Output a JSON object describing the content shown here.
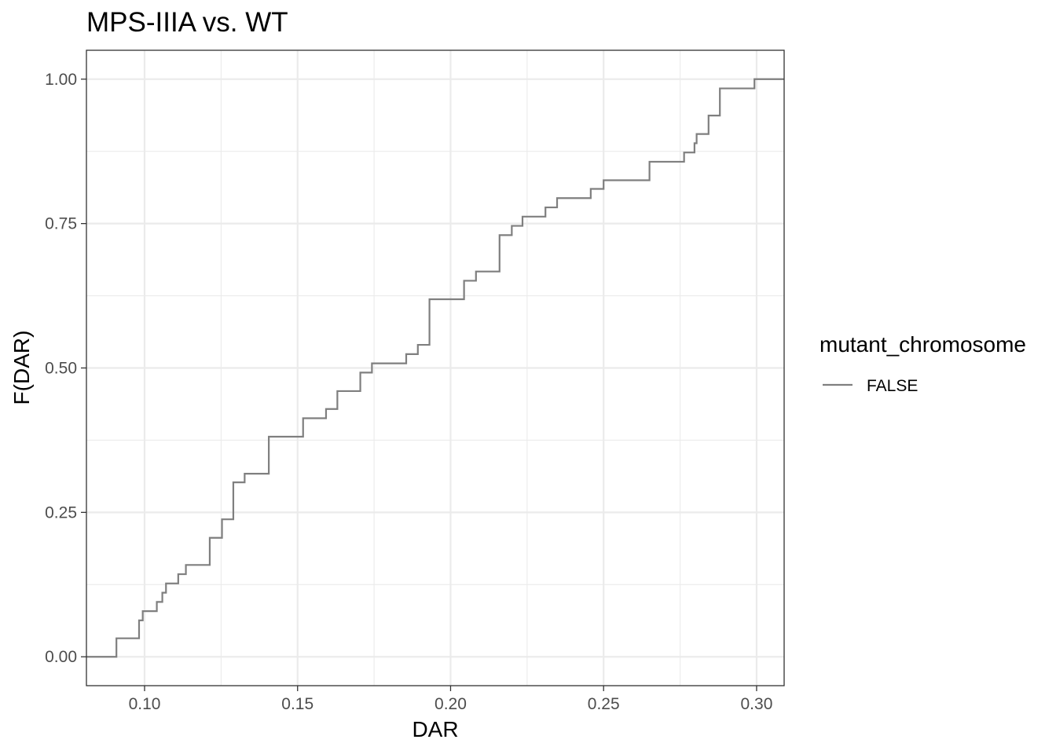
{
  "chart_data": {
    "type": "line",
    "subtype": "ecdf-step",
    "title": "MPS-IIIA vs. WT",
    "xlabel": "DAR",
    "ylabel": "F(DAR)",
    "xlim": [
      0.081,
      0.309
    ],
    "ylim": [
      -0.05,
      1.05
    ],
    "x_ticks": [
      0.1,
      0.15,
      0.2,
      0.25,
      0.3
    ],
    "x_tick_labels": [
      "0.10",
      "0.15",
      "0.20",
      "0.25",
      "0.30"
    ],
    "y_ticks": [
      0.0,
      0.25,
      0.5,
      0.75,
      1.0
    ],
    "y_tick_labels": [
      "0.00",
      "0.25",
      "0.50",
      "0.75",
      "1.00"
    ],
    "grid": true,
    "legend": {
      "title": "mutant_chromosome",
      "position": "right",
      "entries": [
        {
          "label": "FALSE",
          "color": "#7f7f7f"
        }
      ]
    },
    "series": [
      {
        "name": "FALSE",
        "color": "#7f7f7f",
        "x": [
          0.081,
          0.0908,
          0.0982,
          0.0994,
          0.104,
          0.1058,
          0.107,
          0.111,
          0.1135,
          0.1213,
          0.1253,
          0.129,
          0.1327,
          0.1406,
          0.1518,
          0.1593,
          0.163,
          0.1705,
          0.1743,
          0.1855,
          0.1893,
          0.1931,
          0.2044,
          0.2083,
          0.216,
          0.22,
          0.2235,
          0.231,
          0.2348,
          0.2458,
          0.25,
          0.265,
          0.2763,
          0.2797,
          0.2804,
          0.2843,
          0.288,
          0.2993,
          0.309
        ],
        "y": [
          0.0,
          0.032,
          0.063,
          0.079,
          0.095,
          0.111,
          0.127,
          0.143,
          0.159,
          0.206,
          0.238,
          0.302,
          0.317,
          0.381,
          0.413,
          0.429,
          0.46,
          0.492,
          0.508,
          0.524,
          0.54,
          0.619,
          0.651,
          0.667,
          0.73,
          0.746,
          0.762,
          0.778,
          0.794,
          0.81,
          0.825,
          0.857,
          0.873,
          0.889,
          0.905,
          0.937,
          0.984,
          1.0,
          1.0
        ]
      }
    ]
  }
}
